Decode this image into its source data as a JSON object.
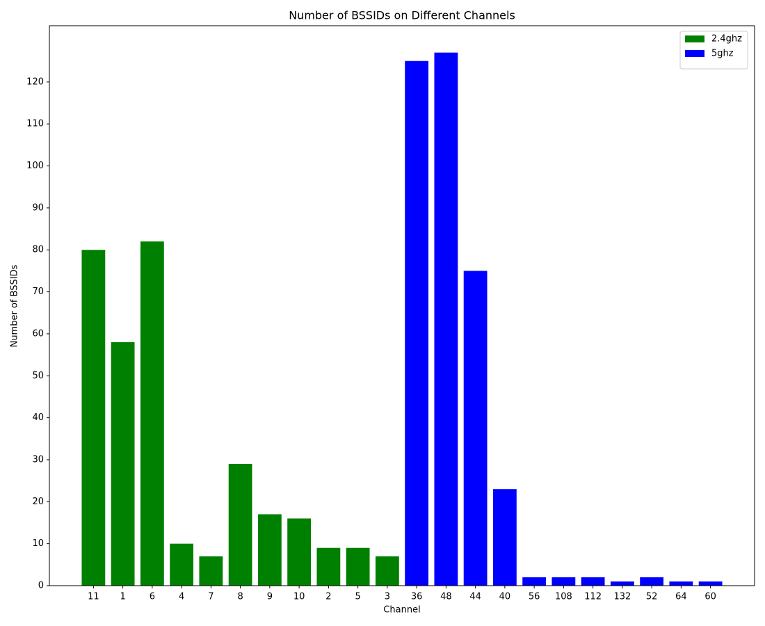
{
  "chart_data": {
    "type": "bar",
    "title": "Number of BSSIDs on Different Channels",
    "x_label": "Channel",
    "y_label": "Number of BSSIDs",
    "categories": [
      "11",
      "1",
      "6",
      "4",
      "7",
      "8",
      "9",
      "10",
      "2",
      "5",
      "3",
      "36",
      "48",
      "44",
      "40",
      "56",
      "108",
      "112",
      "132",
      "52",
      "64",
      "60"
    ],
    "series": [
      {
        "name": "2.4ghz",
        "color": "#008000",
        "values": [
          80,
          58,
          82,
          10,
          7,
          29,
          17,
          16,
          9,
          9,
          7,
          null,
          null,
          null,
          null,
          null,
          null,
          null,
          null,
          null,
          null,
          null
        ]
      },
      {
        "name": "5ghz",
        "color": "#0000ff",
        "values": [
          null,
          null,
          null,
          null,
          null,
          null,
          null,
          null,
          null,
          null,
          null,
          125,
          127,
          75,
          23,
          2,
          2,
          2,
          1,
          2,
          1,
          1
        ]
      }
    ],
    "ylim": [
      0,
      133.4
    ],
    "yticks": [
      0,
      10,
      20,
      30,
      40,
      50,
      60,
      70,
      80,
      90,
      100,
      110,
      120
    ],
    "legend": "upper right"
  }
}
